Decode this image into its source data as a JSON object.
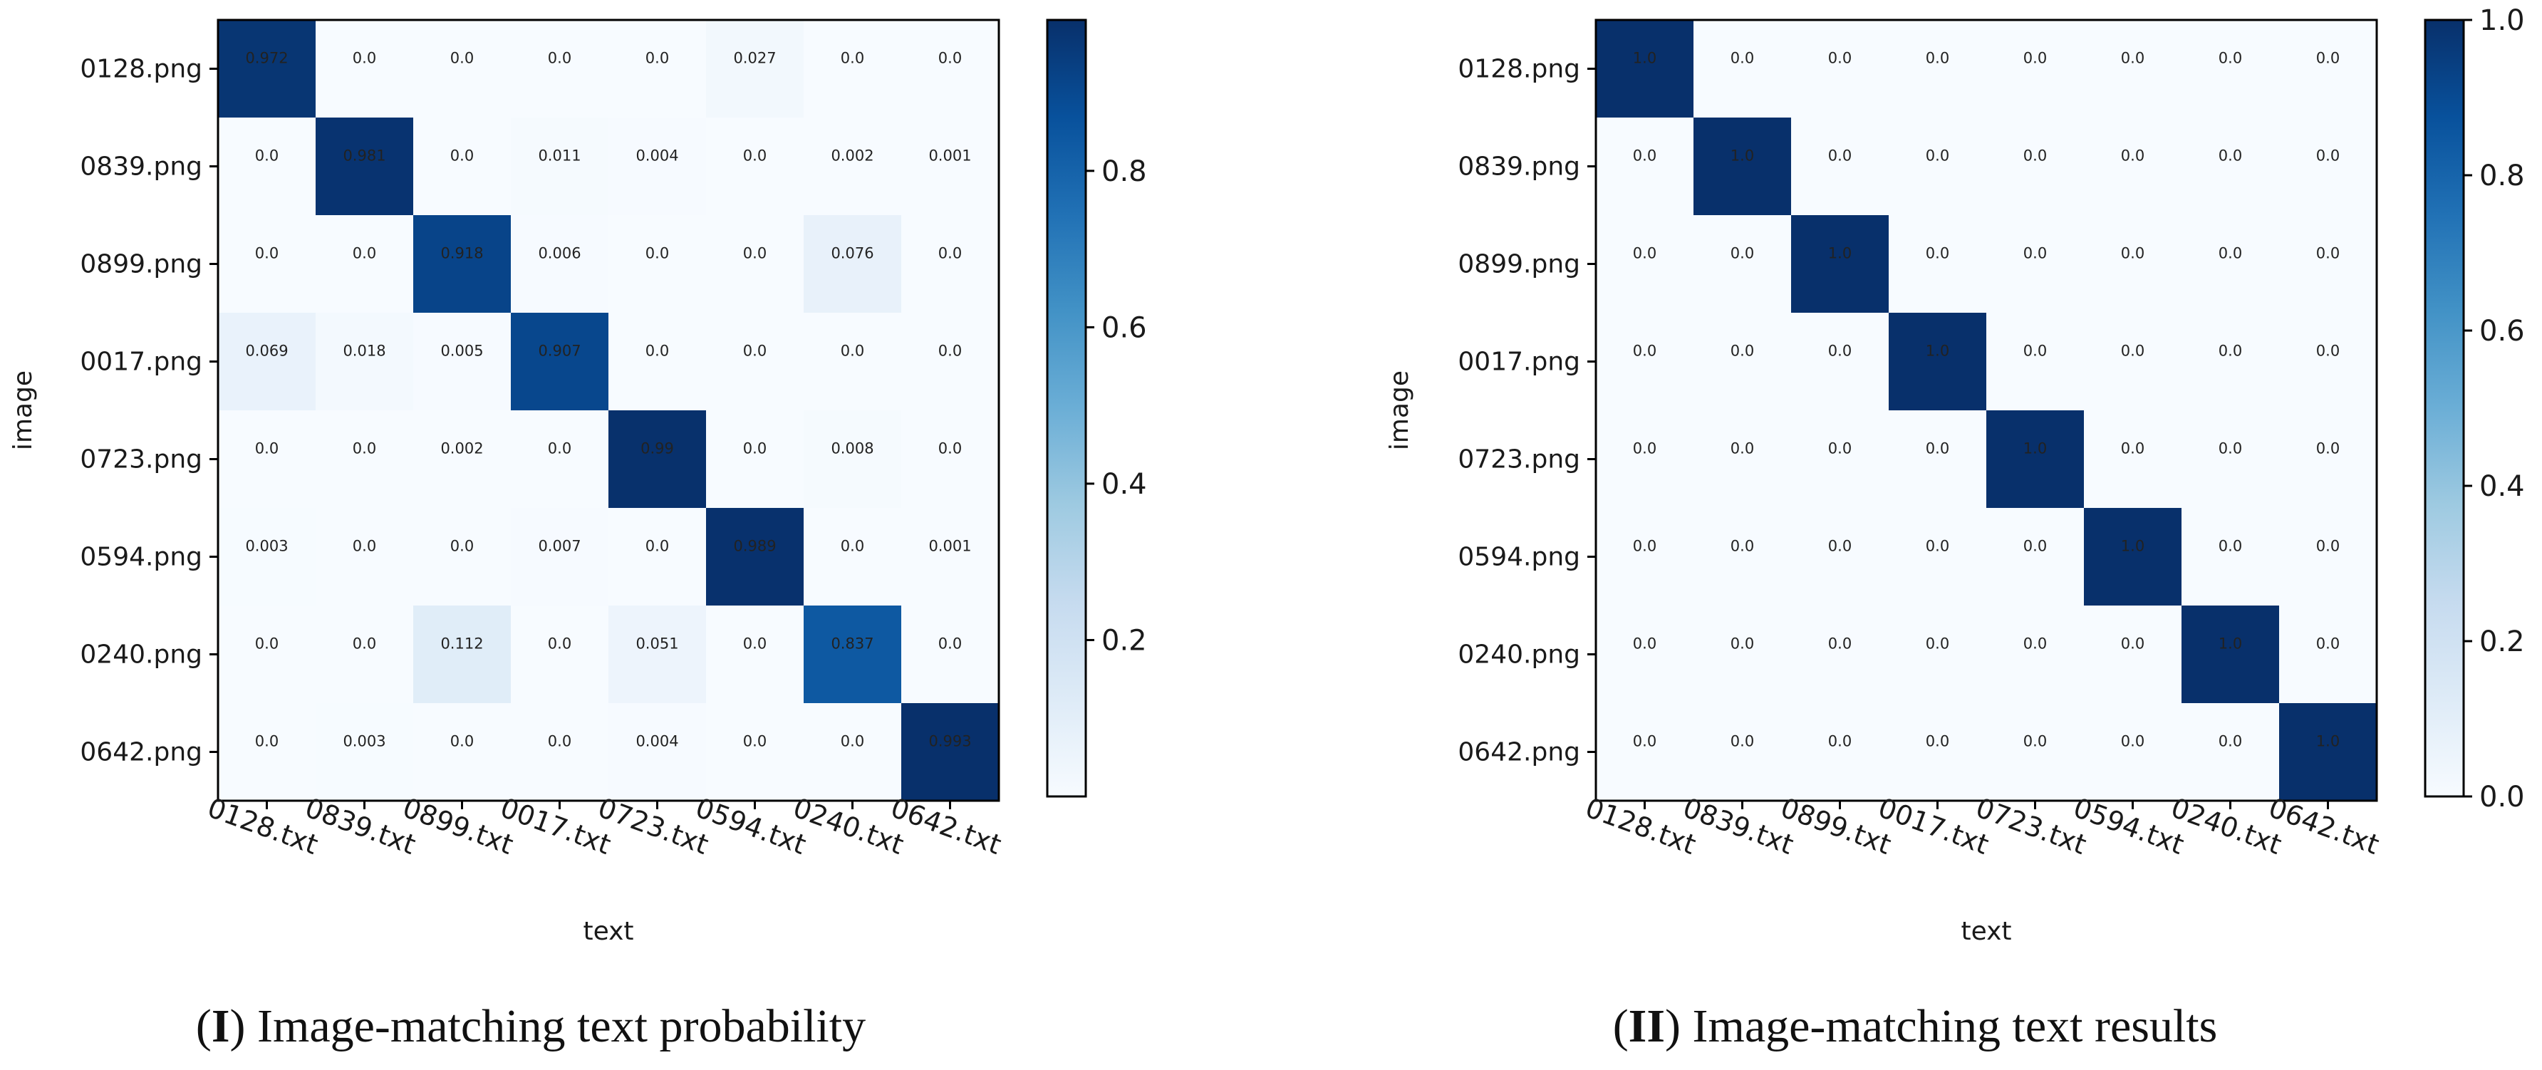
{
  "colors": {
    "scale": [
      "#f7fbff",
      "#deebf7",
      "#c6dbef",
      "#9ecae1",
      "#6baed6",
      "#4292c6",
      "#2171b5",
      "#08519c",
      "#08306b"
    ],
    "axis": "#000000",
    "text": "#111111"
  },
  "chart_data": [
    {
      "type": "heatmap",
      "caption_id": "I",
      "caption_text": " Image-matching text probability",
      "title": "",
      "xlabel": "text",
      "ylabel": "image",
      "rows": [
        "0128.png",
        "0839.png",
        "0899.png",
        "0017.png",
        "0723.png",
        "0594.png",
        "0240.png",
        "0642.png"
      ],
      "cols": [
        "0128.txt",
        "0839.txt",
        "0899.txt",
        "0017.txt",
        "0723.txt",
        "0594.txt",
        "0240.txt",
        "0642.txt"
      ],
      "values": [
        [
          0.972,
          0.0,
          0.0,
          0.0,
          0.0,
          0.027,
          0.0,
          0.0
        ],
        [
          0.0,
          0.981,
          0.0,
          0.011,
          0.004,
          0.0,
          0.002,
          0.001
        ],
        [
          0.0,
          0.0,
          0.918,
          0.006,
          0.0,
          0.0,
          0.076,
          0.0
        ],
        [
          0.069,
          0.018,
          0.005,
          0.907,
          0.0,
          0.0,
          0.0,
          0.0
        ],
        [
          0.0,
          0.0,
          0.002,
          0.0,
          0.99,
          0.0,
          0.008,
          0.0
        ],
        [
          0.003,
          0.0,
          0.0,
          0.007,
          0.0,
          0.989,
          0.0,
          0.001
        ],
        [
          0.0,
          0.0,
          0.112,
          0.0,
          0.051,
          0.0,
          0.837,
          0.0
        ],
        [
          0.0,
          0.003,
          0.0,
          0.0,
          0.004,
          0.0,
          0.0,
          0.993
        ]
      ],
      "labels": [
        [
          "0.972",
          "0.0",
          "0.0",
          "0.0",
          "0.0",
          "0.027",
          "0.0",
          "0.0"
        ],
        [
          "0.0",
          "0.981",
          "0.0",
          "0.011",
          "0.004",
          "0.0",
          "0.002",
          "0.001"
        ],
        [
          "0.0",
          "0.0",
          "0.918",
          "0.006",
          "0.0",
          "0.0",
          "0.076",
          "0.0"
        ],
        [
          "0.069",
          "0.018",
          "0.005",
          "0.907",
          "0.0",
          "0.0",
          "0.0",
          "0.0"
        ],
        [
          "0.0",
          "0.0",
          "0.002",
          "0.0",
          "0.99",
          "0.0",
          "0.008",
          "0.0"
        ],
        [
          "0.003",
          "0.0",
          "0.0",
          "0.007",
          "0.0",
          "0.989",
          "0.0",
          "0.001"
        ],
        [
          "0.0",
          "0.0",
          "0.112",
          "0.0",
          "0.051",
          "0.0",
          "0.837",
          "0.0"
        ],
        [
          "0.0",
          "0.003",
          "0.0",
          "0.0",
          "0.004",
          "0.0",
          "0.0",
          "0.993"
        ]
      ],
      "colorbar": {
        "range": [
          0.0,
          0.993
        ],
        "ticks": [
          0.2,
          0.4,
          0.6,
          0.8
        ],
        "tick_labels": [
          "0.2",
          "0.4",
          "0.6",
          "0.8"
        ]
      }
    },
    {
      "type": "heatmap",
      "caption_id": "II",
      "caption_text": " Image-matching text results",
      "title": "",
      "xlabel": "text",
      "ylabel": "image",
      "rows": [
        "0128.png",
        "0839.png",
        "0899.png",
        "0017.png",
        "0723.png",
        "0594.png",
        "0240.png",
        "0642.png"
      ],
      "cols": [
        "0128.txt",
        "0839.txt",
        "0899.txt",
        "0017.txt",
        "0723.txt",
        "0594.txt",
        "0240.txt",
        "0642.txt"
      ],
      "values": [
        [
          1.0,
          0.0,
          0.0,
          0.0,
          0.0,
          0.0,
          0.0,
          0.0
        ],
        [
          0.0,
          1.0,
          0.0,
          0.0,
          0.0,
          0.0,
          0.0,
          0.0
        ],
        [
          0.0,
          0.0,
          1.0,
          0.0,
          0.0,
          0.0,
          0.0,
          0.0
        ],
        [
          0.0,
          0.0,
          0.0,
          1.0,
          0.0,
          0.0,
          0.0,
          0.0
        ],
        [
          0.0,
          0.0,
          0.0,
          0.0,
          1.0,
          0.0,
          0.0,
          0.0
        ],
        [
          0.0,
          0.0,
          0.0,
          0.0,
          0.0,
          1.0,
          0.0,
          0.0
        ],
        [
          0.0,
          0.0,
          0.0,
          0.0,
          0.0,
          0.0,
          1.0,
          0.0
        ],
        [
          0.0,
          0.0,
          0.0,
          0.0,
          0.0,
          0.0,
          0.0,
          1.0
        ]
      ],
      "labels": [
        [
          "1.0",
          "0.0",
          "0.0",
          "0.0",
          "0.0",
          "0.0",
          "0.0",
          "0.0"
        ],
        [
          "0.0",
          "1.0",
          "0.0",
          "0.0",
          "0.0",
          "0.0",
          "0.0",
          "0.0"
        ],
        [
          "0.0",
          "0.0",
          "1.0",
          "0.0",
          "0.0",
          "0.0",
          "0.0",
          "0.0"
        ],
        [
          "0.0",
          "0.0",
          "0.0",
          "1.0",
          "0.0",
          "0.0",
          "0.0",
          "0.0"
        ],
        [
          "0.0",
          "0.0",
          "0.0",
          "0.0",
          "1.0",
          "0.0",
          "0.0",
          "0.0"
        ],
        [
          "0.0",
          "0.0",
          "0.0",
          "0.0",
          "0.0",
          "1.0",
          "0.0",
          "0.0"
        ],
        [
          "0.0",
          "0.0",
          "0.0",
          "0.0",
          "0.0",
          "0.0",
          "1.0",
          "0.0"
        ],
        [
          "0.0",
          "0.0",
          "0.0",
          "0.0",
          "0.0",
          "0.0",
          "0.0",
          "1.0"
        ]
      ],
      "colorbar": {
        "range": [
          0.0,
          1.0
        ],
        "ticks": [
          0.0,
          0.2,
          0.4,
          0.6,
          0.8,
          1.0
        ],
        "tick_labels": [
          "0.0",
          "0.2",
          "0.4",
          "0.6",
          "0.8",
          "1.0"
        ]
      }
    }
  ]
}
